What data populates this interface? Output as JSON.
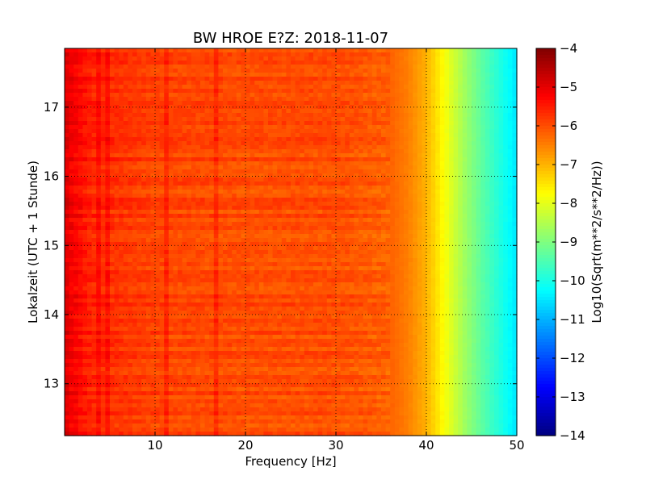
{
  "chart_data": {
    "type": "heatmap",
    "title": "BW HROE E?Z: 2018-11-07",
    "xlabel": "Frequency [Hz]",
    "ylabel": "Lokalzeit (UTC + 1 Stunde)",
    "xlim": [
      0,
      50
    ],
    "ylim": [
      17.85,
      12.25
    ],
    "x_ticks": [
      10,
      20,
      30,
      40,
      50
    ],
    "x_tick_labels": [
      "10",
      "20",
      "30",
      "40",
      "50"
    ],
    "y_ticks": [
      13,
      14,
      15,
      16,
      17
    ],
    "y_tick_labels": [
      "13",
      "14",
      "15",
      "16",
      "17"
    ],
    "grid": true,
    "colorbar": {
      "label": "Log10(Sqrt(m**2/s**2/Hz))",
      "range": [
        -14,
        -4
      ],
      "ticks": [
        -4,
        -5,
        -6,
        -7,
        -8,
        -9,
        -10,
        -11,
        -12,
        -13,
        -14
      ],
      "tick_labels": [
        "−4",
        "−5",
        "−6",
        "−7",
        "−8",
        "−9",
        "−10",
        "−11",
        "−12",
        "−13",
        "−14"
      ],
      "colormap": "jet"
    },
    "spectral_profile": {
      "frequency_hz": [
        0,
        1,
        3,
        10,
        20,
        30,
        36,
        38,
        40,
        42,
        44,
        46,
        48,
        50
      ],
      "level": [
        -4.9,
        -5.2,
        -5.6,
        -5.9,
        -6.0,
        -6.0,
        -6.2,
        -6.5,
        -7.0,
        -7.8,
        -8.6,
        -9.3,
        -9.9,
        -10.5
      ]
    },
    "persistent_lines_hz": [
      3.6,
      4.8,
      11.3,
      16.7
    ],
    "colors": {
      "dark_red": "#7f0000",
      "red": "#ff0000",
      "orange": "#ff8000",
      "yellow": "#ffff00",
      "green": "#80ff80",
      "cyan": "#00ffff",
      "blue": "#0000ff",
      "dark_blue": "#00007f"
    }
  }
}
